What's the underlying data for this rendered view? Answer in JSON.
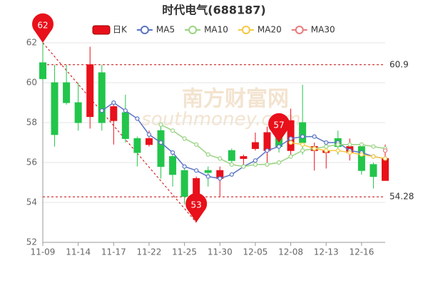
{
  "chart_data": {
    "type": "candlestick",
    "title": "时代电气(688187)",
    "watermark": [
      "南方财富网",
      "southmoney.com"
    ],
    "candle_name": "日K",
    "up_color": "#e8101a",
    "down_color": "#22c54a",
    "categories": [
      "11-09",
      null,
      null,
      "11-14",
      null,
      null,
      "11-17",
      null,
      null,
      "11-22",
      null,
      null,
      "11-25",
      null,
      null,
      "11-30",
      null,
      null,
      "12-05",
      null,
      null,
      "12-08",
      null,
      null,
      "12-13",
      null,
      null,
      "12-16",
      null,
      null
    ],
    "open": [
      61.0,
      60.0,
      60.0,
      59.0,
      58.3,
      60.5,
      58.1,
      58.5,
      57.2,
      56.9,
      57.6,
      56.3,
      55.6,
      53.8,
      55.6,
      55.2,
      56.6,
      56.2,
      56.7,
      56.6,
      57.3,
      56.6,
      58.0,
      56.6,
      56.5,
      57.2,
      56.5,
      56.8,
      55.9,
      55.1
    ],
    "high": [
      62.0,
      60.9,
      60.9,
      60.0,
      61.8,
      60.9,
      58.9,
      59.4,
      57.3,
      57.6,
      57.8,
      56.5,
      55.8,
      55.3,
      55.8,
      55.8,
      56.7,
      56.4,
      57.5,
      57.8,
      57.4,
      58.7,
      59.9,
      57.0,
      56.9,
      57.6,
      57.2,
      57.0,
      56.0,
      56.9
    ],
    "low": [
      60.1,
      56.8,
      58.9,
      57.6,
      57.7,
      57.6,
      56.9,
      57.0,
      55.8,
      56.8,
      55.2,
      54.8,
      53.9,
      53.2,
      54.8,
      54.3,
      56.0,
      55.8,
      56.6,
      55.8,
      56.5,
      56.3,
      56.4,
      55.6,
      55.7,
      56.4,
      56.1,
      55.4,
      54.7,
      55.1
    ],
    "close": [
      60.2,
      57.4,
      59.0,
      58.0,
      60.9,
      58.0,
      58.8,
      57.2,
      56.5,
      57.2,
      55.8,
      55.4,
      54.3,
      55.2,
      55.5,
      55.6,
      56.1,
      56.3,
      57.0,
      57.5,
      56.8,
      58.1,
      57.0,
      56.8,
      56.6,
      56.8,
      56.8,
      55.6,
      55.3,
      56.2
    ],
    "series": [
      {
        "name": "MA5",
        "color": "#5b74c4",
        "values": [
          null,
          null,
          null,
          null,
          null,
          58.6,
          59.0,
          58.6,
          58.2,
          57.4,
          57.0,
          56.5,
          55.8,
          55.6,
          55.3,
          55.2,
          55.4,
          55.8,
          56.1,
          56.6,
          56.8,
          57.2,
          57.3,
          57.3,
          57.0,
          57.0,
          56.6,
          56.5,
          56.3,
          56.2
        ]
      },
      {
        "name": "MA10",
        "color": "#9bd384",
        "values": [
          null,
          null,
          null,
          null,
          null,
          null,
          null,
          null,
          null,
          null,
          57.9,
          57.6,
          57.2,
          56.9,
          56.4,
          56.2,
          55.9,
          55.8,
          55.9,
          55.9,
          56.0,
          56.3,
          56.6,
          56.7,
          56.8,
          56.9,
          56.9,
          56.9,
          56.8,
          56.7
        ]
      },
      {
        "name": "MA20",
        "color": "#f5c842",
        "values": [
          null,
          null,
          null,
          null,
          null,
          null,
          null,
          null,
          null,
          null,
          null,
          null,
          null,
          null,
          null,
          null,
          null,
          null,
          null,
          null,
          null,
          57.0,
          56.9,
          56.7,
          56.6,
          56.6,
          56.5,
          56.4,
          56.3,
          56.2
        ]
      },
      {
        "name": "MA30",
        "color": "#e87b7b",
        "values": [
          null,
          null,
          null,
          null,
          null,
          null,
          null,
          null,
          null,
          null,
          null,
          null,
          null,
          null,
          null,
          null,
          null,
          null,
          null,
          null,
          null,
          null,
          null,
          null,
          null,
          null,
          null,
          null,
          null,
          56.6
        ]
      }
    ],
    "markers": [
      {
        "index": 0,
        "value": 62
      },
      {
        "index": 13,
        "value": 53
      },
      {
        "index": 20,
        "value": 57
      }
    ],
    "hlines": [
      {
        "value": 60.9,
        "label": "60.9"
      },
      {
        "value": 54.28,
        "label": "54.28"
      }
    ],
    "ylim": [
      52,
      62
    ],
    "yticks": [
      52,
      54,
      56,
      58,
      60,
      62
    ],
    "grid": true
  }
}
